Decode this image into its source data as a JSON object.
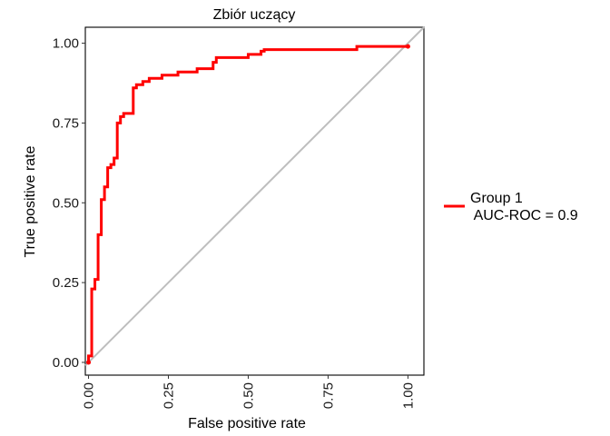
{
  "chart_data": {
    "type": "line",
    "title": "Zbiór uczący",
    "xlabel": "False positive rate",
    "ylabel": "True positive rate",
    "xlim": [
      -0.01,
      1.05
    ],
    "ylim": [
      -0.04,
      1.05
    ],
    "x_ticks": [
      0.0,
      0.25,
      0.5,
      0.75,
      1.0
    ],
    "x_tick_labels": [
      "0.00",
      "0.25",
      "0.50",
      "0.75",
      "1.00"
    ],
    "y_ticks": [
      0.0,
      0.25,
      0.5,
      0.75,
      1.0
    ],
    "y_tick_labels": [
      "0.00",
      "0.25",
      "0.50",
      "0.75",
      "1.00"
    ],
    "grid": false,
    "legend_position": "right",
    "series": [
      {
        "name": "Group 1\n AUC-ROC = 0.9",
        "color": "#ff0000",
        "points": [
          [
            0.0,
            0.0
          ],
          [
            0.0,
            0.02
          ],
          [
            0.01,
            0.02
          ],
          [
            0.01,
            0.23
          ],
          [
            0.02,
            0.23
          ],
          [
            0.02,
            0.26
          ],
          [
            0.03,
            0.26
          ],
          [
            0.03,
            0.4
          ],
          [
            0.04,
            0.4
          ],
          [
            0.04,
            0.51
          ],
          [
            0.05,
            0.51
          ],
          [
            0.05,
            0.55
          ],
          [
            0.06,
            0.55
          ],
          [
            0.06,
            0.61
          ],
          [
            0.07,
            0.61
          ],
          [
            0.07,
            0.62
          ],
          [
            0.08,
            0.62
          ],
          [
            0.08,
            0.64
          ],
          [
            0.09,
            0.64
          ],
          [
            0.09,
            0.75
          ],
          [
            0.1,
            0.75
          ],
          [
            0.1,
            0.77
          ],
          [
            0.11,
            0.77
          ],
          [
            0.11,
            0.78
          ],
          [
            0.14,
            0.78
          ],
          [
            0.14,
            0.86
          ],
          [
            0.15,
            0.86
          ],
          [
            0.15,
            0.87
          ],
          [
            0.17,
            0.87
          ],
          [
            0.17,
            0.88
          ],
          [
            0.19,
            0.88
          ],
          [
            0.19,
            0.89
          ],
          [
            0.23,
            0.89
          ],
          [
            0.23,
            0.9
          ],
          [
            0.28,
            0.9
          ],
          [
            0.28,
            0.91
          ],
          [
            0.34,
            0.91
          ],
          [
            0.34,
            0.92
          ],
          [
            0.39,
            0.92
          ],
          [
            0.39,
            0.94
          ],
          [
            0.4,
            0.94
          ],
          [
            0.4,
            0.955
          ],
          [
            0.5,
            0.955
          ],
          [
            0.5,
            0.965
          ],
          [
            0.54,
            0.965
          ],
          [
            0.54,
            0.975
          ],
          [
            0.55,
            0.975
          ],
          [
            0.55,
            0.98
          ],
          [
            0.84,
            0.98
          ],
          [
            0.84,
            0.99
          ],
          [
            1.0,
            0.99
          ]
        ]
      }
    ],
    "reference_line": {
      "from": [
        0,
        0
      ],
      "to": [
        1,
        1
      ],
      "color": "#bebebe"
    }
  }
}
